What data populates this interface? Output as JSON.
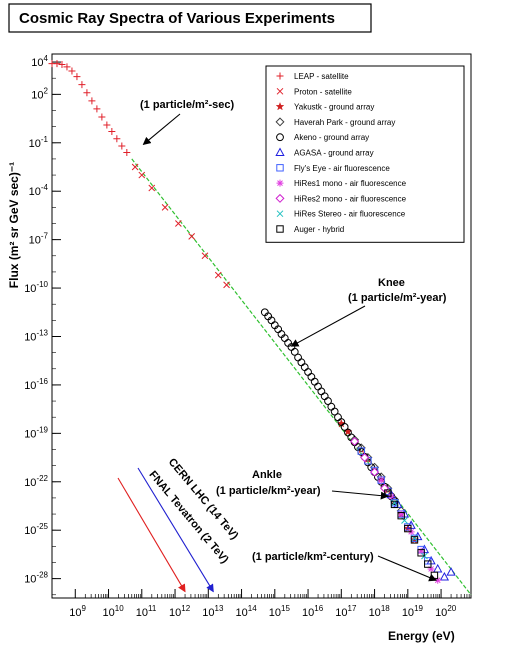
{
  "chart_data": {
    "type": "scatter",
    "title": "Cosmic Ray Spectra of Various Experiments",
    "xlabel": "Energy (eV)",
    "ylabel": "Flux (m² sr GeV sec)⁻¹",
    "x_scale": "log",
    "y_scale": "log",
    "xlim_exp": [
      8.3,
      20.9
    ],
    "ylim_exp": [
      -29.2,
      4.5
    ],
    "x_tick_exponents": [
      9,
      10,
      11,
      12,
      13,
      14,
      15,
      16,
      17,
      18,
      19,
      20
    ],
    "y_tick_exponents": [
      4,
      2,
      -1,
      -4,
      -7,
      -10,
      -13,
      -16,
      -19,
      -22,
      -25,
      -28
    ],
    "legend_position": "top-right",
    "colors": {
      "leap": "#e0202a",
      "proton": "#e0202a",
      "yakustk": "#d02020",
      "haverah": "#404040",
      "akeno": "#000000",
      "agasa": "#2020e0",
      "flyseye": "#4060ff",
      "hires1": "#e040e0",
      "hires2": "#d020d0",
      "hiresstereo": "#20c0c0",
      "auger": "#000000",
      "fit": "#30c030",
      "fnal": "#e02020",
      "lhc": "#2020d0"
    },
    "series": [
      {
        "name": "LEAP - satellite",
        "marker": "plus",
        "color": "#e0202a",
        "points": [
          [
            8.3,
            3.9
          ],
          [
            8.45,
            3.9
          ],
          [
            8.6,
            3.85
          ],
          [
            8.75,
            3.7
          ],
          [
            8.9,
            3.45
          ],
          [
            9.05,
            3.1
          ],
          [
            9.2,
            2.6
          ],
          [
            9.35,
            2.1
          ],
          [
            9.5,
            1.6
          ],
          [
            9.65,
            1.1
          ],
          [
            9.8,
            0.6
          ],
          [
            9.95,
            0.1
          ],
          [
            10.1,
            -0.3
          ],
          [
            10.25,
            -0.75
          ],
          [
            10.4,
            -1.2
          ],
          [
            10.55,
            -1.6
          ]
        ]
      },
      {
        "name": "Proton - satellite",
        "marker": "x",
        "color": "#e0202a",
        "points": [
          [
            10.8,
            -2.5
          ],
          [
            11.0,
            -3.0
          ],
          [
            11.3,
            -3.8
          ],
          [
            11.7,
            -5.0
          ],
          [
            12.1,
            -6.0
          ],
          [
            12.5,
            -6.8
          ],
          [
            12.9,
            -8.0
          ],
          [
            13.3,
            -9.2
          ],
          [
            13.55,
            -9.8
          ]
        ]
      },
      {
        "name": "Yakustk - ground array",
        "marker": "star",
        "color": "#d02020",
        "points": [
          [
            17.0,
            -18.4
          ],
          [
            17.2,
            -18.9
          ],
          [
            17.4,
            -19.5
          ],
          [
            17.6,
            -20.0
          ],
          [
            17.8,
            -20.6
          ],
          [
            18.0,
            -21.2
          ],
          [
            18.2,
            -21.8
          ],
          [
            18.4,
            -22.5
          ],
          [
            18.6,
            -23.2
          ],
          [
            18.8,
            -24.0
          ],
          [
            19.0,
            -24.9
          ],
          [
            19.2,
            -25.6
          ]
        ]
      },
      {
        "name": "Haverah Park - ground array",
        "marker": "diamond-open",
        "color": "#404040",
        "points": [
          [
            17.4,
            -19.4
          ],
          [
            17.6,
            -19.9
          ],
          [
            17.8,
            -20.5
          ],
          [
            18.0,
            -21.1
          ],
          [
            18.2,
            -21.7
          ],
          [
            18.4,
            -22.4
          ],
          [
            18.6,
            -23.1
          ],
          [
            18.8,
            -23.8
          ]
        ]
      },
      {
        "name": "Akeno - ground array",
        "marker": "circle-open",
        "color": "#000000",
        "points": [
          [
            14.7,
            -11.5
          ],
          [
            14.8,
            -11.75
          ],
          [
            14.9,
            -12.0
          ],
          [
            15.0,
            -12.3
          ],
          [
            15.1,
            -12.55
          ],
          [
            15.2,
            -12.85
          ],
          [
            15.3,
            -13.1
          ],
          [
            15.4,
            -13.4
          ],
          [
            15.5,
            -13.65
          ],
          [
            15.6,
            -13.95
          ],
          [
            15.7,
            -14.3
          ],
          [
            15.8,
            -14.6
          ],
          [
            15.9,
            -14.9
          ],
          [
            16.0,
            -15.2
          ],
          [
            16.1,
            -15.5
          ],
          [
            16.2,
            -15.8
          ],
          [
            16.3,
            -16.1
          ],
          [
            16.4,
            -16.4
          ],
          [
            16.5,
            -16.7
          ],
          [
            16.6,
            -17.0
          ],
          [
            16.7,
            -17.35
          ],
          [
            16.8,
            -17.65
          ],
          [
            16.9,
            -18.0
          ],
          [
            17.0,
            -18.3
          ],
          [
            17.1,
            -18.6
          ],
          [
            17.2,
            -18.95
          ],
          [
            17.3,
            -19.25
          ],
          [
            17.4,
            -19.55
          ],
          [
            17.5,
            -19.85
          ],
          [
            17.6,
            -20.15
          ],
          [
            17.7,
            -20.45
          ],
          [
            17.8,
            -20.8
          ],
          [
            17.9,
            -21.1
          ],
          [
            18.0,
            -21.4
          ],
          [
            18.1,
            -21.7
          ],
          [
            18.2,
            -22.0
          ],
          [
            18.3,
            -22.3
          ],
          [
            18.4,
            -22.6
          ],
          [
            18.5,
            -22.9
          ],
          [
            18.6,
            -23.2
          ]
        ]
      },
      {
        "name": "AGASA - ground array",
        "marker": "triangle-open",
        "color": "#2020e0",
        "points": [
          [
            18.5,
            -22.8
          ],
          [
            18.7,
            -23.4
          ],
          [
            18.9,
            -24.0
          ],
          [
            19.1,
            -24.7
          ],
          [
            19.3,
            -25.4
          ],
          [
            19.5,
            -26.2
          ],
          [
            19.7,
            -26.9
          ],
          [
            19.9,
            -27.4
          ],
          [
            20.1,
            -27.9
          ],
          [
            20.3,
            -27.6
          ]
        ]
      },
      {
        "name": "Fly's Eye - air fluorescence",
        "marker": "square-open",
        "color": "#4060ff",
        "points": [
          [
            17.6,
            -20.1
          ],
          [
            17.8,
            -20.7
          ],
          [
            18.0,
            -21.3
          ],
          [
            18.2,
            -21.9
          ],
          [
            18.4,
            -22.6
          ],
          [
            18.6,
            -23.3
          ],
          [
            18.8,
            -24.0
          ],
          [
            19.0,
            -24.8
          ],
          [
            19.2,
            -25.5
          ],
          [
            19.4,
            -26.2
          ],
          [
            19.6,
            -26.9
          ]
        ]
      },
      {
        "name": "HiRes1 mono - air fluorescence",
        "marker": "asterisk",
        "color": "#e040e0",
        "points": [
          [
            18.2,
            -21.9
          ],
          [
            18.5,
            -22.9
          ],
          [
            18.8,
            -24.0
          ],
          [
            19.1,
            -25.1
          ],
          [
            19.4,
            -26.3
          ],
          [
            19.7,
            -27.4
          ],
          [
            19.9,
            -28.1
          ]
        ]
      },
      {
        "name": "HiRes2 mono - air fluorescence",
        "marker": "diamond-open",
        "color": "#d020d0",
        "points": [
          [
            17.4,
            -19.5
          ],
          [
            17.7,
            -20.5
          ],
          [
            18.0,
            -21.4
          ],
          [
            18.3,
            -22.4
          ]
        ]
      },
      {
        "name": "HiRes Stereo - air fluorescence",
        "marker": "x",
        "color": "#20c0c0",
        "points": [
          [
            18.6,
            -23.3
          ],
          [
            18.9,
            -24.4
          ],
          [
            19.2,
            -25.5
          ],
          [
            19.5,
            -26.6
          ]
        ]
      },
      {
        "name": "Auger - hybrid",
        "marker": "square-open",
        "color": "#000000",
        "points": [
          [
            18.4,
            -22.7
          ],
          [
            18.6,
            -23.4
          ],
          [
            18.8,
            -24.1
          ],
          [
            19.0,
            -24.9
          ],
          [
            19.2,
            -25.6
          ],
          [
            19.4,
            -26.4
          ],
          [
            19.6,
            -27.1
          ],
          [
            19.8,
            -27.8
          ]
        ]
      }
    ],
    "fit_line": [
      [
        10.7,
        -2.0
      ],
      [
        20.9,
        -29.0
      ]
    ],
    "annotations": {
      "particle_sec": "(1 particle/m²-sec)",
      "knee_title": "Knee",
      "knee_detail": "(1 particle/m²-year)",
      "ankle_title": "Ankle",
      "ankle_detail": "(1 particle/km²-year)",
      "century": "(1 particle/km²-century)",
      "fnal": "FNAL Tevatron (2 TeV)",
      "lhc": "CERN LHC (14 TeV)"
    },
    "annotation_arrows": {
      "particle_sec": [
        11.05,
        -1.1
      ],
      "knee": [
        15.5,
        -13.6
      ],
      "ankle": [
        18.4,
        -22.9
      ],
      "century": [
        19.85,
        -28.1
      ],
      "fnal": [
        12.3,
        -28.8
      ],
      "lhc": [
        13.15,
        -28.8
      ]
    }
  }
}
